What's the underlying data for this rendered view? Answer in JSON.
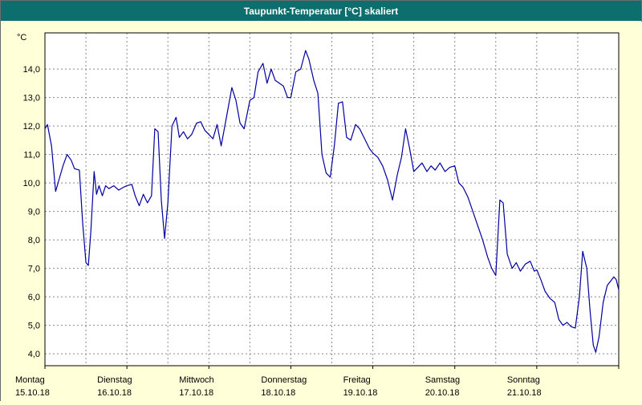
{
  "window": {
    "title": "Taupunkt-Temperatur [°C] skaliert"
  },
  "colors": {
    "header_bg": "#0d6e6e",
    "header_text": "#ffffff",
    "page_bg": "#ffffd8",
    "plot_bg": "#ffffff",
    "grid": "#8a8a8a",
    "axis": "#000000",
    "line": "#0000a0",
    "label_text": "#000000"
  },
  "chart_data": {
    "type": "line",
    "title": "Taupunkt-Temperatur [°C] skaliert",
    "y_unit": "°C",
    "ylabel": "",
    "xlabel": "",
    "ylim": [
      3.58,
      15.27
    ],
    "y_ticks": [
      4,
      5,
      6,
      7,
      8,
      9,
      10,
      11,
      12,
      13,
      14
    ],
    "y_tick_labels": [
      "4,0",
      "5,0",
      "6,0",
      "7,0",
      "8,0",
      "9,0",
      "10,0",
      "11,0",
      "12,0",
      "13,0",
      "14,0"
    ],
    "x_range_days": [
      0,
      7
    ],
    "x_days": [
      {
        "weekday": "Montag",
        "date": "15.10.18"
      },
      {
        "weekday": "Dienstag",
        "date": "16.10.18"
      },
      {
        "weekday": "Mittwoch",
        "date": "17.10.18"
      },
      {
        "weekday": "Donnerstag",
        "date": "18.10.18"
      },
      {
        "weekday": "Freitag",
        "date": "19.10.18"
      },
      {
        "weekday": "Samstag",
        "date": "20.10.18"
      },
      {
        "weekday": "Sonntag",
        "date": "21.10.18"
      }
    ],
    "grid": {
      "horizontal_step": 1,
      "vertical_step_days": 0.5,
      "style": "dashed",
      "enabled": true
    },
    "legend": "none",
    "series": [
      {
        "name": "Taupunkt-Temperatur",
        "points": [
          [
            0.0,
            11.9
          ],
          [
            0.03,
            12.05
          ],
          [
            0.08,
            11.3
          ],
          [
            0.13,
            9.7
          ],
          [
            0.18,
            10.2
          ],
          [
            0.22,
            10.6
          ],
          [
            0.27,
            11.0
          ],
          [
            0.32,
            10.8
          ],
          [
            0.36,
            10.5
          ],
          [
            0.42,
            10.45
          ],
          [
            0.46,
            8.6
          ],
          [
            0.5,
            7.2
          ],
          [
            0.53,
            7.1
          ],
          [
            0.56,
            8.3
          ],
          [
            0.6,
            10.4
          ],
          [
            0.63,
            9.6
          ],
          [
            0.66,
            9.9
          ],
          [
            0.7,
            9.55
          ],
          [
            0.74,
            9.9
          ],
          [
            0.78,
            9.8
          ],
          [
            0.84,
            9.9
          ],
          [
            0.9,
            9.75
          ],
          [
            0.96,
            9.85
          ],
          [
            1.0,
            9.9
          ],
          [
            1.06,
            9.95
          ],
          [
            1.1,
            9.55
          ],
          [
            1.15,
            9.2
          ],
          [
            1.2,
            9.6
          ],
          [
            1.25,
            9.3
          ],
          [
            1.3,
            9.55
          ],
          [
            1.34,
            11.9
          ],
          [
            1.38,
            11.8
          ],
          [
            1.42,
            9.4
          ],
          [
            1.46,
            8.05
          ],
          [
            1.5,
            9.3
          ],
          [
            1.55,
            12.0
          ],
          [
            1.6,
            12.3
          ],
          [
            1.64,
            11.6
          ],
          [
            1.69,
            11.8
          ],
          [
            1.74,
            11.55
          ],
          [
            1.79,
            11.7
          ],
          [
            1.85,
            12.1
          ],
          [
            1.9,
            12.15
          ],
          [
            1.95,
            11.85
          ],
          [
            2.0,
            11.7
          ],
          [
            2.05,
            11.55
          ],
          [
            2.1,
            12.05
          ],
          [
            2.15,
            11.3
          ],
          [
            2.22,
            12.4
          ],
          [
            2.28,
            13.35
          ],
          [
            2.33,
            12.9
          ],
          [
            2.38,
            12.1
          ],
          [
            2.43,
            11.9
          ],
          [
            2.5,
            12.9
          ],
          [
            2.55,
            13.0
          ],
          [
            2.6,
            13.9
          ],
          [
            2.66,
            14.2
          ],
          [
            2.71,
            13.5
          ],
          [
            2.76,
            14.0
          ],
          [
            2.81,
            13.6
          ],
          [
            2.86,
            13.5
          ],
          [
            2.91,
            13.4
          ],
          [
            2.96,
            13.0
          ],
          [
            3.0,
            13.0
          ],
          [
            3.06,
            13.9
          ],
          [
            3.12,
            14.0
          ],
          [
            3.18,
            14.65
          ],
          [
            3.22,
            14.35
          ],
          [
            3.28,
            13.6
          ],
          [
            3.33,
            13.15
          ],
          [
            3.38,
            11.0
          ],
          [
            3.43,
            10.35
          ],
          [
            3.48,
            10.2
          ],
          [
            3.53,
            11.3
          ],
          [
            3.58,
            12.8
          ],
          [
            3.63,
            12.85
          ],
          [
            3.68,
            11.6
          ],
          [
            3.73,
            11.5
          ],
          [
            3.79,
            12.05
          ],
          [
            3.84,
            11.9
          ],
          [
            3.9,
            11.55
          ],
          [
            3.96,
            11.2
          ],
          [
            4.0,
            11.05
          ],
          [
            4.06,
            10.9
          ],
          [
            4.12,
            10.6
          ],
          [
            4.18,
            10.1
          ],
          [
            4.24,
            9.4
          ],
          [
            4.3,
            10.3
          ],
          [
            4.35,
            10.9
          ],
          [
            4.4,
            11.9
          ],
          [
            4.45,
            11.2
          ],
          [
            4.5,
            10.4
          ],
          [
            4.55,
            10.55
          ],
          [
            4.6,
            10.7
          ],
          [
            4.66,
            10.4
          ],
          [
            4.71,
            10.6
          ],
          [
            4.76,
            10.45
          ],
          [
            4.82,
            10.7
          ],
          [
            4.88,
            10.4
          ],
          [
            4.94,
            10.55
          ],
          [
            5.0,
            10.6
          ],
          [
            5.05,
            10.0
          ],
          [
            5.1,
            9.85
          ],
          [
            5.16,
            9.5
          ],
          [
            5.22,
            9.0
          ],
          [
            5.28,
            8.5
          ],
          [
            5.34,
            8.0
          ],
          [
            5.4,
            7.4
          ],
          [
            5.45,
            7.0
          ],
          [
            5.5,
            6.75
          ],
          [
            5.55,
            9.4
          ],
          [
            5.59,
            9.3
          ],
          [
            5.64,
            7.5
          ],
          [
            5.7,
            7.0
          ],
          [
            5.75,
            7.2
          ],
          [
            5.8,
            6.9
          ],
          [
            5.86,
            7.15
          ],
          [
            5.92,
            7.25
          ],
          [
            5.97,
            6.9
          ],
          [
            6.0,
            6.95
          ],
          [
            6.05,
            6.6
          ],
          [
            6.1,
            6.2
          ],
          [
            6.16,
            5.95
          ],
          [
            6.22,
            5.8
          ],
          [
            6.27,
            5.2
          ],
          [
            6.32,
            5.0
          ],
          [
            6.37,
            5.1
          ],
          [
            6.42,
            4.95
          ],
          [
            6.47,
            4.9
          ],
          [
            6.52,
            6.0
          ],
          [
            6.56,
            7.6
          ],
          [
            6.61,
            7.0
          ],
          [
            6.65,
            5.5
          ],
          [
            6.69,
            4.3
          ],
          [
            6.72,
            4.05
          ],
          [
            6.76,
            4.6
          ],
          [
            6.81,
            5.8
          ],
          [
            6.86,
            6.4
          ],
          [
            6.9,
            6.55
          ],
          [
            6.94,
            6.7
          ],
          [
            6.97,
            6.6
          ],
          [
            7.0,
            6.25
          ]
        ]
      }
    ]
  }
}
